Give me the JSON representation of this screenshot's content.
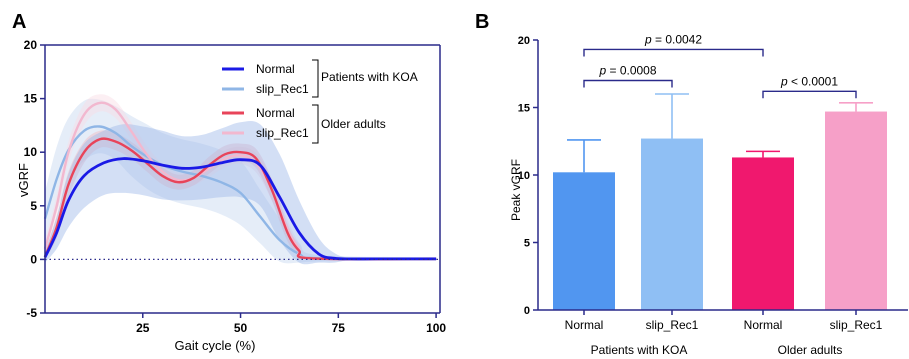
{
  "chart_data": [
    {
      "panel_label": "A",
      "type": "line",
      "xlabel": "Gait cycle (%)",
      "ylabel": "vGRF",
      "xlim": [
        0,
        101
      ],
      "ylim": [
        -5,
        20
      ],
      "x_ticks": [
        "25",
        "50",
        "75",
        "100"
      ],
      "y_ticks": [
        "-5",
        "0",
        "5",
        "10",
        "15",
        "20"
      ],
      "x_tick_values": [
        25,
        50,
        75,
        100
      ],
      "y_tick_values": [
        -5,
        0,
        5,
        10,
        15,
        20
      ],
      "reference_line_y": 0,
      "legend": {
        "position": "top-right",
        "groups": [
          {
            "label": "Patients with KOA",
            "entries": [
              "Normal",
              "slip_Rec1"
            ]
          },
          {
            "label": "Older adults",
            "entries": [
              "Normal",
              "slip_Rec1"
            ]
          }
        ]
      },
      "series": [
        {
          "name": "Normal",
          "group": "Patients with KOA",
          "color": "#1a1ae6",
          "band_color": "#9db8e8",
          "x": [
            0,
            3,
            6,
            10,
            15,
            20,
            25,
            30,
            35,
            40,
            45,
            50,
            55,
            60,
            65,
            70,
            74,
            78,
            85,
            100
          ],
          "y": [
            0.2,
            2.5,
            5.5,
            7.8,
            9.0,
            9.4,
            9.2,
            8.8,
            8.5,
            8.6,
            9.0,
            9.3,
            8.8,
            5.8,
            2.5,
            0.5,
            0.1,
            0.05,
            0.05,
            0.05
          ],
          "sd": [
            0.5,
            1.5,
            2.5,
            3.0,
            3.0,
            3.2,
            3.2,
            3.2,
            3.0,
            3.0,
            3.2,
            3.5,
            3.8,
            4.0,
            3.0,
            1.5,
            0.5,
            0.1,
            0.1,
            0.1
          ]
        },
        {
          "name": "slip_Rec1",
          "group": "Patients with KOA",
          "color": "#8fb6e6",
          "band_color": "#c5d8f0",
          "x": [
            0,
            3,
            6,
            10,
            14,
            18,
            22,
            26,
            30,
            35,
            40,
            45,
            50,
            55,
            60,
            65,
            70
          ],
          "y": [
            3.8,
            7.5,
            10.2,
            12.0,
            12.4,
            11.8,
            10.6,
            9.6,
            8.8,
            8.2,
            7.8,
            7.2,
            6.2,
            4.0,
            1.8,
            0.5,
            0.1
          ],
          "sd": [
            2.5,
            3.0,
            3.0,
            2.8,
            2.5,
            2.5,
            2.8,
            3.0,
            3.0,
            3.0,
            3.0,
            3.0,
            3.0,
            2.5,
            2.0,
            1.0,
            0.3
          ]
        },
        {
          "name": "Normal",
          "group": "Older adults",
          "color": "#e8445a",
          "band_color": "#f0b9c1",
          "x": [
            0,
            3,
            6,
            10,
            14,
            18,
            22,
            26,
            30,
            34,
            38,
            42,
            46,
            50,
            54,
            58,
            62,
            65,
            68
          ],
          "y": [
            0.3,
            3.0,
            7.0,
            10.0,
            11.2,
            11.0,
            10.2,
            9.0,
            7.8,
            7.2,
            7.6,
            8.8,
            9.8,
            10.0,
            9.4,
            6.5,
            2.5,
            0.8,
            0.1
          ],
          "sd": [
            0.3,
            1.0,
            1.2,
            1.0,
            0.8,
            0.8,
            0.8,
            0.8,
            0.8,
            0.7,
            0.7,
            0.8,
            0.8,
            0.8,
            0.9,
            1.0,
            0.8,
            0.4,
            0.1
          ]
        },
        {
          "name": "slip_Rec1",
          "group": "Older adults",
          "color": "#f2b8cf",
          "band_color": "#f8dbe5",
          "x": [
            0,
            3,
            6,
            10,
            14,
            18,
            22,
            26,
            30,
            34,
            38,
            42,
            46,
            50,
            54,
            58,
            62,
            65,
            68
          ],
          "y": [
            1.0,
            5.0,
            10.0,
            13.5,
            14.6,
            14.0,
            12.0,
            9.8,
            8.2,
            7.4,
            7.6,
            8.5,
            9.4,
            9.7,
            9.0,
            6.5,
            2.8,
            1.0,
            0.1
          ],
          "sd": [
            0.8,
            1.0,
            1.0,
            1.0,
            0.8,
            0.8,
            0.8,
            0.8,
            0.7,
            0.7,
            0.7,
            0.8,
            0.8,
            0.8,
            0.9,
            1.0,
            0.9,
            0.5,
            0.1
          ]
        }
      ]
    },
    {
      "panel_label": "B",
      "type": "bar",
      "ylabel": "Peak vGRF",
      "ylim": [
        0,
        20
      ],
      "y_ticks": [
        "0",
        "5",
        "10",
        "15",
        "20"
      ],
      "y_tick_values": [
        0,
        5,
        10,
        15,
        20
      ],
      "categories": [
        "Normal",
        "slip_Rec1",
        "Normal",
        "slip_Rec1"
      ],
      "groups": [
        {
          "label": "Patients with KOA",
          "bars": [
            0,
            1
          ]
        },
        {
          "label": "Older adults",
          "bars": [
            2,
            3
          ]
        }
      ],
      "values": [
        10.2,
        12.7,
        11.3,
        14.7
      ],
      "errors": [
        2.4,
        3.3,
        0.45,
        0.65
      ],
      "colors": [
        "#5196f0",
        "#8fbff4",
        "#f0186e",
        "#f6a0c8"
      ],
      "comparisons": [
        {
          "from": 0,
          "to": 1,
          "label": "p = 0.0008",
          "y": 17.0
        },
        {
          "from": 2,
          "to": 3,
          "label": "p < 0.0001",
          "y": 16.2
        },
        {
          "from": 0,
          "to": 2,
          "label": "p = 0.0042",
          "y": 19.3
        }
      ]
    }
  ]
}
